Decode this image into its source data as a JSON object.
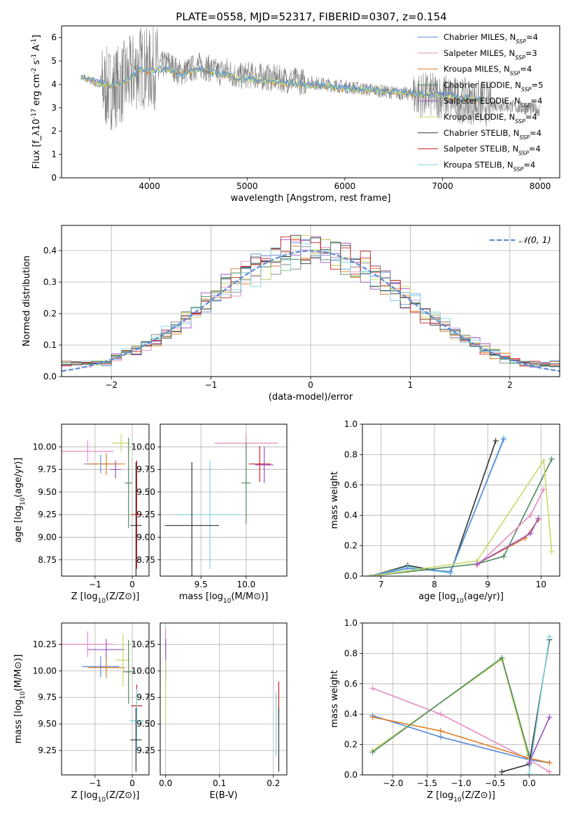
{
  "figure_title": "PLATE=0558, MJD=52317, FIBERID=0307, z=0.154",
  "series_colors": [
    "#5b8bd6",
    "#e58bc2",
    "#e07b22",
    "#808080",
    "#9b4fc3",
    "#c8d96a",
    "#333333",
    "#cc2222",
    "#7fd3e0",
    "#4f8a5e"
  ],
  "chart_data": [
    {
      "type": "line",
      "id": "spectrum",
      "xlabel": "wavelength [Angstrom, rest frame]",
      "ylabel": "Flux [f_λ10^-17 erg cm^-2 s^-1 A^-1]",
      "xlim": [
        3100,
        8200
      ],
      "ylim": [
        0,
        6.5
      ],
      "xticks": [
        4000,
        5000,
        6000,
        7000,
        8000
      ],
      "yticks": [
        0,
        1,
        2,
        3,
        4,
        5,
        6
      ],
      "grid": false,
      "legend_position": "right",
      "data_series": {
        "name": "",
        "x": [
          3300,
          3400,
          3500,
          3600,
          3700,
          3800,
          3900,
          4000,
          4100,
          4200,
          4300,
          4400,
          4500,
          4600,
          4700,
          4800,
          4900,
          5000,
          5200,
          5400,
          5600,
          5800,
          6000,
          6200,
          6400,
          6600,
          6800,
          7000,
          7200,
          7400,
          7600,
          7800,
          8000
        ],
        "y": [
          4.3,
          4.1,
          3.9,
          3.8,
          4.0,
          4.3,
          4.8,
          4.6,
          4.8,
          4.9,
          4.5,
          4.6,
          4.8,
          4.7,
          4.5,
          4.6,
          4.3,
          4.4,
          4.3,
          4.2,
          4.1,
          4.0,
          3.9,
          3.8,
          3.7,
          3.6,
          3.55,
          3.5,
          3.3,
          3.2,
          3.1,
          3.0,
          2.9
        ]
      },
      "legend": [
        {
          "name": "Chabrier MILES, N_SSP=4",
          "color": "#5b8bd6"
        },
        {
          "name": "Salpeter MILES, N_SSP=3",
          "color": "#e58bc2"
        },
        {
          "name": "Kroupa MILES, N_SSP=4",
          "color": "#e07b22"
        },
        {
          "name": "Chabrier ELODIE, N_SSP=5",
          "color": "#4f8a5e"
        },
        {
          "name": "Salpeter ELODIE, N_SSP=4",
          "color": "#9b4fc3"
        },
        {
          "name": "Kroupa ELODIE, N_SSP=4",
          "color": "#c8d96a"
        },
        {
          "name": "Chabrier STELIB, N_SSP=4",
          "color": "#333333"
        },
        {
          "name": "Salpeter STELIB, N_SSP=4",
          "color": "#cc2222"
        },
        {
          "name": "Kroupa STELIB, N_SSP=4",
          "color": "#7fd3e0"
        }
      ],
      "model_series": {
        "x": [
          3300,
          3400,
          3500,
          3600,
          3700,
          3800,
          3900,
          4000,
          4100,
          4200,
          4300,
          4400,
          4500,
          4600,
          4700,
          4800,
          4900,
          5000,
          5200,
          5400,
          5600,
          5800,
          6000,
          6200,
          6400,
          6600,
          6800,
          7000,
          7200,
          7400
        ],
        "y": [
          4.3,
          4.2,
          4.0,
          3.9,
          4.0,
          4.2,
          4.6,
          4.5,
          4.6,
          4.6,
          4.4,
          4.5,
          4.6,
          4.5,
          4.4,
          4.4,
          4.2,
          4.2,
          4.1,
          4.0,
          3.95,
          3.9,
          3.8,
          3.75,
          3.7,
          3.6,
          3.55,
          3.5,
          3.4,
          3.3
        ]
      }
    },
    {
      "type": "line",
      "id": "residuals",
      "xlabel": "(data-model)/error",
      "ylabel": "Normed distribution",
      "xlim": [
        -2.5,
        2.5
      ],
      "ylim": [
        0,
        0.48
      ],
      "xticks": [
        -2,
        -1,
        0,
        1,
        2
      ],
      "yticks": [
        0.0,
        0.1,
        0.2,
        0.3,
        0.4
      ],
      "grid": true,
      "legend": [
        {
          "name": "𝒩(0, 1)",
          "color": "#5b8bd6",
          "style": "dashed"
        }
      ],
      "legend_position": "top-right",
      "gaussian": {
        "mean": 0,
        "sigma": 1
      }
    },
    {
      "type": "scatter",
      "id": "age_vs_Z",
      "xlabel": "Z [log10(Z/Z⊙)]",
      "ylabel": "age  [log10(age/yr)]",
      "xlim": [
        -1.9,
        0.45
      ],
      "ylim": [
        8.57,
        10.25
      ],
      "xticks": [
        -1,
        0
      ],
      "yticks": [
        8.75,
        9.0,
        9.25,
        9.5,
        9.75,
        10.0
      ],
      "grid": true,
      "points": [
        {
          "x": -1.2,
          "y": 9.95,
          "xerr": 0.7,
          "yerr": 0.12,
          "color": "#e58bc2"
        },
        {
          "x": -0.85,
          "y": 9.81,
          "xerr": 0.45,
          "yerr": 0.1,
          "color": "#5b8bd6"
        },
        {
          "x": -0.7,
          "y": 9.81,
          "xerr": 0.5,
          "yerr": 0.12,
          "color": "#e07b22"
        },
        {
          "x": -0.3,
          "y": 10.04,
          "xerr": 0.25,
          "yerr": 0.1,
          "color": "#c8d96a"
        },
        {
          "x": -0.45,
          "y": 9.75,
          "xerr": 0.15,
          "yerr": 0.1,
          "color": "#9b4fc3"
        },
        {
          "x": -0.1,
          "y": 9.6,
          "xerr": 0.1,
          "yerr": 0.5,
          "color": "#4f8a5e"
        },
        {
          "x": 0.12,
          "y": 9.25,
          "xerr": 0.16,
          "yerr": 0.6,
          "color": "#cc2222"
        },
        {
          "x": 0.1,
          "y": 9.13,
          "xerr": 0.15,
          "yerr": 0.7,
          "color": "#333333"
        }
      ]
    },
    {
      "type": "scatter",
      "id": "age_vs_mass",
      "xlabel": "mass [log10(M/M⊙)]",
      "ylabel": "",
      "xlim": [
        9.05,
        10.45
      ],
      "ylim": [
        8.57,
        10.25
      ],
      "xticks": [
        9.5,
        10.0
      ],
      "yticks": [
        8.75,
        9.0,
        9.25,
        9.5,
        9.75,
        10.0
      ],
      "grid": true,
      "points": [
        {
          "x": 10.0,
          "y": 10.04,
          "xerr": 0.35,
          "yerr": 0.1,
          "color": "#e58bc2"
        },
        {
          "x": 10.15,
          "y": 9.81,
          "xerr": 0.12,
          "yerr": 0.2,
          "color": "#cc2222"
        },
        {
          "x": 10.2,
          "y": 9.8,
          "xerr": 0.1,
          "yerr": 0.2,
          "color": "#9b4fc3"
        },
        {
          "x": 10.0,
          "y": 9.6,
          "xerr": 0.05,
          "yerr": 0.45,
          "color": "#4f8a5e"
        },
        {
          "x": 9.6,
          "y": 9.25,
          "xerr": 0.35,
          "yerr": 0.6,
          "color": "#7fd3e0"
        },
        {
          "x": 9.4,
          "y": 9.13,
          "xerr": 0.3,
          "yerr": 0.7,
          "color": "#333333"
        }
      ]
    },
    {
      "type": "line",
      "id": "mass_weight_vs_age",
      "xlabel": "age  [log10(age/yr)]",
      "ylabel": "mass weight",
      "xlim": [
        6.65,
        10.35
      ],
      "ylim": [
        0,
        1.0
      ],
      "xticks": [
        7,
        8,
        9,
        10
      ],
      "yticks": [
        0.0,
        0.2,
        0.4,
        0.6,
        0.8,
        1.0
      ],
      "grid": true,
      "series": [
        {
          "name": "",
          "color": "#333333",
          "x": [
            6.8,
            7.5,
            8.3,
            9.15
          ],
          "y": [
            0.0,
            0.07,
            0.02,
            0.89
          ]
        },
        {
          "name": "",
          "color": "#7fd3e0",
          "x": [
            6.8,
            7.5,
            8.3,
            9.3
          ],
          "y": [
            0.0,
            0.06,
            0.02,
            0.91
          ]
        },
        {
          "name": "",
          "color": "#5b8bd6",
          "x": [
            6.8,
            7.5,
            8.3,
            9.3
          ],
          "y": [
            0.0,
            0.05,
            0.03,
            0.9
          ]
        },
        {
          "name": "",
          "color": "#4f8a5e",
          "x": [
            6.8,
            8.8,
            9.3,
            10.2
          ],
          "y": [
            0.0,
            0.08,
            0.13,
            0.77
          ]
        },
        {
          "name": "",
          "color": "#c8d96a",
          "x": [
            6.8,
            8.8,
            10.05,
            10.2
          ],
          "y": [
            0.0,
            0.1,
            0.76,
            0.16
          ]
        },
        {
          "name": "",
          "color": "#e58bc2",
          "x": [
            8.8,
            9.8,
            10.05
          ],
          "y": [
            0.07,
            0.4,
            0.57
          ]
        },
        {
          "name": "",
          "color": "#e07b22",
          "x": [
            8.8,
            9.7,
            9.95
          ],
          "y": [
            0.08,
            0.25,
            0.37
          ]
        },
        {
          "name": "",
          "color": "#9b4fc3",
          "x": [
            8.8,
            9.8,
            9.95
          ],
          "y": [
            0.08,
            0.28,
            0.38
          ]
        }
      ]
    },
    {
      "type": "scatter",
      "id": "mass_vs_Z",
      "xlabel": "Z [log10(Z/Z⊙)]",
      "ylabel": "mass [log10(M/M⊙)]",
      "xlim": [
        -1.9,
        0.45
      ],
      "ylim": [
        9.02,
        10.45
      ],
      "xticks": [
        -1,
        0
      ],
      "yticks": [
        9.25,
        9.5,
        9.75,
        10.0,
        10.25
      ],
      "grid": true,
      "points": [
        {
          "x": -1.2,
          "y": 10.25,
          "xerr": 0.7,
          "yerr": 0.12,
          "color": "#e58bc2"
        },
        {
          "x": -0.7,
          "y": 10.2,
          "xerr": 0.5,
          "yerr": 0.1,
          "color": "#9b4fc3"
        },
        {
          "x": -0.85,
          "y": 10.04,
          "xerr": 0.5,
          "yerr": 0.1,
          "color": "#5b8bd6"
        },
        {
          "x": -0.7,
          "y": 10.03,
          "xerr": 0.5,
          "yerr": 0.1,
          "color": "#e07b22"
        },
        {
          "x": -0.25,
          "y": 10.1,
          "xerr": 0.2,
          "yerr": 0.25,
          "color": "#c8d96a"
        },
        {
          "x": -0.1,
          "y": 9.99,
          "xerr": 0.15,
          "yerr": 0.3,
          "color": "#4f8a5e"
        },
        {
          "x": 0.12,
          "y": 9.67,
          "xerr": 0.15,
          "yerr": 0.2,
          "color": "#cc2222"
        },
        {
          "x": 0.12,
          "y": 9.53,
          "xerr": 0.2,
          "yerr": 0.3,
          "color": "#7fd3e0"
        },
        {
          "x": 0.1,
          "y": 9.35,
          "xerr": 0.15,
          "yerr": 0.3,
          "color": "#333333"
        }
      ]
    },
    {
      "type": "scatter",
      "id": "mass_vs_EBV",
      "xlabel": "E(B-V)",
      "ylabel": "",
      "xlim": [
        -0.01,
        0.225
      ],
      "ylim": [
        9.02,
        10.45
      ],
      "xticks": [
        0.0,
        0.1,
        0.2
      ],
      "yticks": [
        9.25,
        9.5,
        9.75,
        10.0,
        10.25
      ],
      "grid": true,
      "points": [
        {
          "x": 0.0,
          "y": 10.3,
          "xerr": 0,
          "yerr": 0.1,
          "color": "#e58bc2"
        },
        {
          "x": 0.0,
          "y": 10.1,
          "xerr": 0,
          "yerr": 0.2,
          "color": "#9b4fc3"
        },
        {
          "x": 0.0,
          "y": 9.8,
          "xerr": 0,
          "yerr": 0.3,
          "color": "#c8d96a"
        },
        {
          "x": 0.21,
          "y": 9.75,
          "xerr": 0,
          "yerr": 0.15,
          "color": "#cc2222"
        },
        {
          "x": 0.205,
          "y": 9.5,
          "xerr": 0,
          "yerr": 0.3,
          "color": "#7fd3e0"
        },
        {
          "x": 0.21,
          "y": 9.35,
          "xerr": 0,
          "yerr": 0.3,
          "color": "#333333"
        }
      ]
    },
    {
      "type": "line",
      "id": "mass_weight_vs_Z",
      "xlabel": "Z [log10(Z/Z⊙)]",
      "ylabel": "mass weight",
      "xlim": [
        -2.45,
        0.45
      ],
      "ylim": [
        0,
        1.0
      ],
      "xticks": [
        -2.0,
        -1.5,
        -1.0,
        -0.5,
        0.0
      ],
      "yticks": [
        0.0,
        0.2,
        0.4,
        0.6,
        0.8,
        1.0
      ],
      "grid": true,
      "series": [
        {
          "name": "",
          "color": "#e58bc2",
          "x": [
            -2.3,
            -1.3,
            0.0,
            0.3
          ],
          "y": [
            0.57,
            0.4,
            0.1,
            0.02
          ]
        },
        {
          "name": "",
          "color": "#5b8bd6",
          "x": [
            -2.3,
            -1.3,
            0.0,
            0.3
          ],
          "y": [
            0.39,
            0.25,
            0.1,
            0.08
          ]
        },
        {
          "name": "",
          "color": "#e07b22",
          "x": [
            -2.3,
            -1.3,
            0.0,
            0.3
          ],
          "y": [
            0.38,
            0.29,
            0.11,
            0.08
          ]
        },
        {
          "name": "",
          "color": "#c8d96a",
          "x": [
            -2.3,
            -0.4,
            0.0
          ],
          "y": [
            0.16,
            0.76,
            0.1
          ]
        },
        {
          "name": "",
          "color": "#4f8a5e",
          "x": [
            -2.3,
            -0.4,
            0.0
          ],
          "y": [
            0.15,
            0.77,
            0.13
          ]
        },
        {
          "name": "",
          "color": "#333333",
          "x": [
            -0.4,
            0.0,
            0.3
          ],
          "y": [
            0.02,
            0.07,
            0.89
          ]
        },
        {
          "name": "",
          "color": "#7fd3e0",
          "x": [
            0.0,
            0.3
          ],
          "y": [
            0.01,
            0.91
          ]
        },
        {
          "name": "",
          "color": "#9b4fc3",
          "x": [
            0.0,
            0.3
          ],
          "y": [
            0.08,
            0.38
          ]
        }
      ]
    }
  ]
}
